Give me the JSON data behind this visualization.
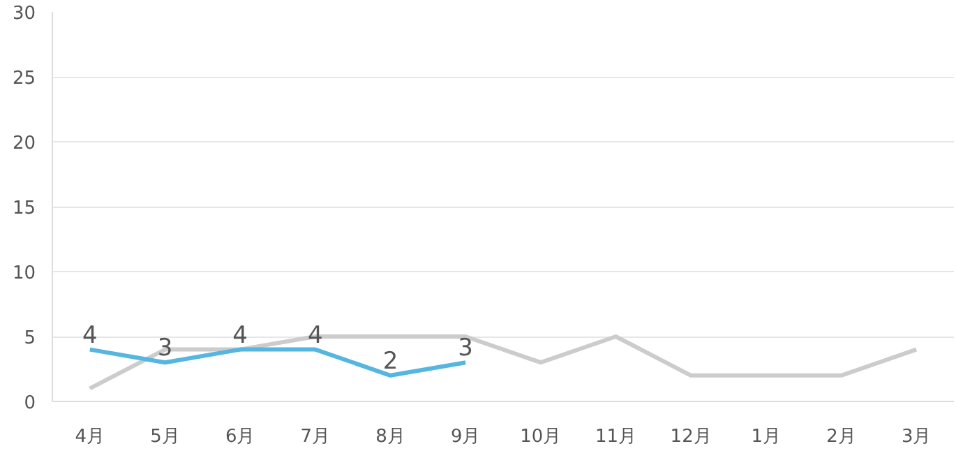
{
  "chart_data": {
    "type": "line",
    "categories": [
      "4月",
      "5月",
      "6月",
      "7月",
      "8月",
      "9月",
      "10月",
      "11月",
      "12月",
      "1月",
      "2月",
      "3月"
    ],
    "series": [
      {
        "color": "#cccccc",
        "values": [
          1,
          4,
          4,
          5,
          5,
          5,
          3,
          5,
          2,
          2,
          2,
          4
        ]
      },
      {
        "color": "#55b6e0",
        "values": [
          4,
          3,
          4,
          4,
          2,
          3,
          null,
          null,
          null,
          null,
          null,
          null
        ],
        "value_labels": [
          "4",
          "3",
          "4",
          "4",
          "2",
          "3",
          null,
          null,
          null,
          null,
          null,
          null
        ]
      }
    ],
    "ylim": [
      0,
      30
    ],
    "yticks": [
      0,
      5,
      10,
      15,
      20,
      25,
      30
    ],
    "grid": "y",
    "marker": "none",
    "line_style": "solid"
  }
}
